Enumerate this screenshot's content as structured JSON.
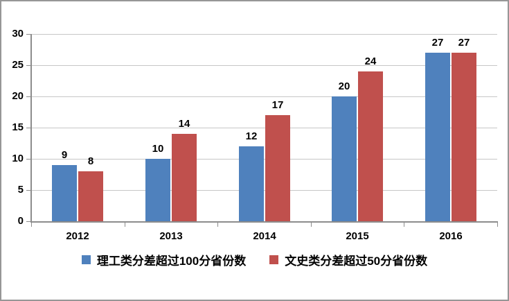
{
  "chart_data": {
    "type": "bar",
    "title": "",
    "categories": [
      "2012",
      "2013",
      "2014",
      "2015",
      "2016"
    ],
    "series": [
      {
        "name": "理工类分差超过100分省份数",
        "color": "#4F81BD",
        "values": [
          9,
          10,
          12,
          20,
          27
        ]
      },
      {
        "name": "文史类分差超过50分省份数",
        "color": "#C0504D",
        "values": [
          8,
          14,
          17,
          24,
          27
        ]
      }
    ],
    "xlabel": "",
    "ylabel": "",
    "ylim": [
      0,
      30
    ],
    "yticks": [
      0,
      5,
      10,
      15,
      20,
      25,
      30
    ],
    "grid": true,
    "legend_position": "bottom",
    "data_labels": true
  },
  "colors": {
    "bar_blue": "#4F81BD",
    "bar_red": "#C0504D",
    "gridline": "#C6C6C6",
    "axis": "#8C8C8C",
    "text": "#000000",
    "frame_border": "#969696",
    "background": "#FFFFFF"
  }
}
